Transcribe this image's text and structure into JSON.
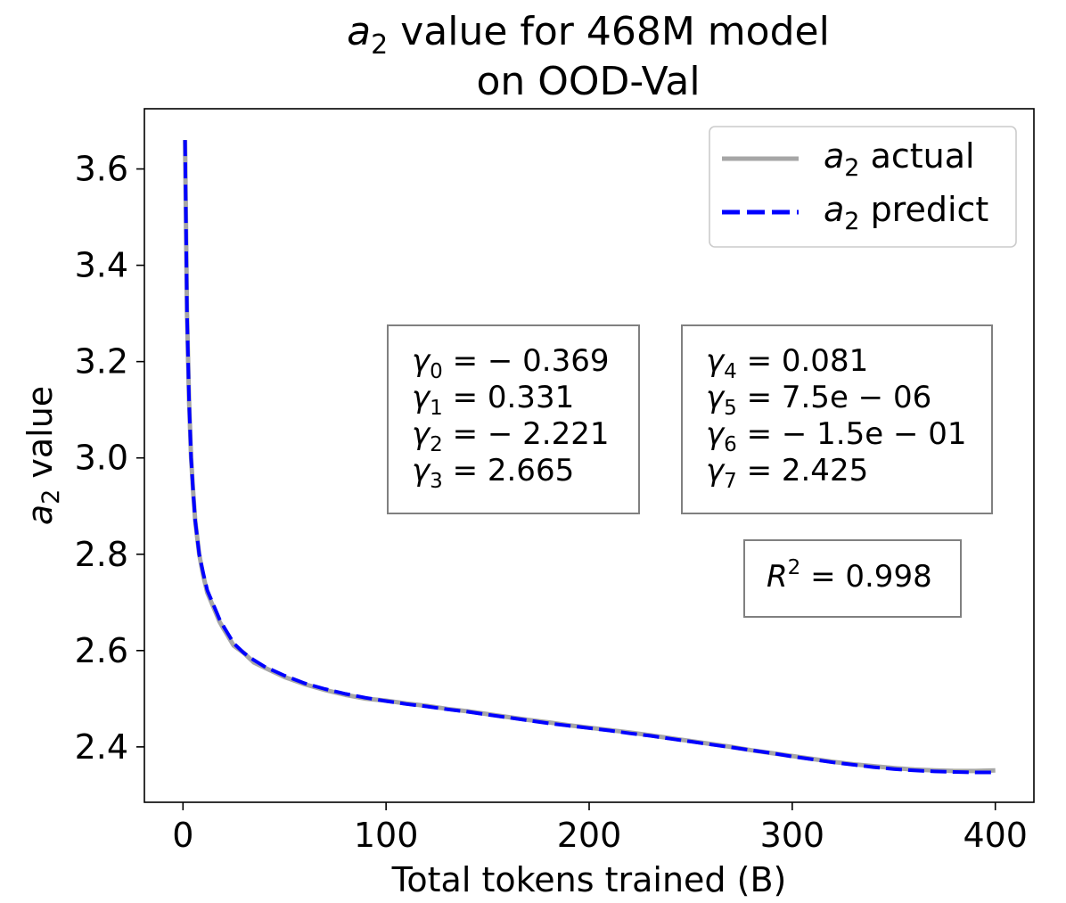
{
  "chart_data": {
    "type": "line",
    "title_line1_sym": "a",
    "title_line1_sub": "2",
    "title_line1_rest": " value for 468M model",
    "title_line2": "on OOD-Val",
    "xlabel": "Total tokens trained (B)",
    "ylabel_sym": "a",
    "ylabel_sub": "2",
    "ylabel_rest": " value",
    "xlim": [
      -19,
      419
    ],
    "ylim": [
      2.285,
      3.725
    ],
    "xticks": [
      0,
      100,
      200,
      300,
      400
    ],
    "xtick_labels": [
      "0",
      "100",
      "200",
      "300",
      "400"
    ],
    "yticks": [
      2.4,
      2.6,
      2.8,
      3.0,
      3.2,
      3.4,
      3.6
    ],
    "ytick_labels": [
      "2.4",
      "2.6",
      "2.8",
      "3.0",
      "3.2",
      "3.4",
      "3.6"
    ],
    "grid": false,
    "legend_position": "top-right",
    "series": [
      {
        "name": "a2 actual",
        "legend_sym": "a",
        "legend_sub": "2",
        "legend_rest": " actual",
        "color": "#a6a6a6",
        "style": "solid",
        "x": [
          1,
          2,
          3,
          4,
          5,
          6,
          8,
          10,
          12,
          15,
          18,
          20,
          25,
          30,
          35,
          40,
          50,
          60,
          70,
          80,
          90,
          100,
          110,
          120,
          130,
          140,
          150,
          160,
          170,
          180,
          190,
          200,
          210,
          220,
          230,
          240,
          250,
          260,
          270,
          280,
          290,
          300,
          310,
          320,
          330,
          340,
          350,
          360,
          370,
          380,
          390,
          400
        ],
        "y": [
          3.66,
          3.3,
          3.12,
          3.0,
          2.93,
          2.87,
          2.8,
          2.755,
          2.72,
          2.69,
          2.66,
          2.645,
          2.61,
          2.595,
          2.575,
          2.565,
          2.545,
          2.53,
          2.518,
          2.508,
          2.5,
          2.496,
          2.49,
          2.485,
          2.479,
          2.474,
          2.468,
          2.462,
          2.456,
          2.451,
          2.445,
          2.44,
          2.435,
          2.43,
          2.424,
          2.418,
          2.412,
          2.406,
          2.4,
          2.393,
          2.387,
          2.381,
          2.375,
          2.369,
          2.364,
          2.36,
          2.356,
          2.353,
          2.351,
          2.35,
          2.35,
          2.351
        ]
      },
      {
        "name": "a2 predict",
        "legend_sym": "a",
        "legend_sub": "2",
        "legend_rest": " predict",
        "color": "#0000ff",
        "style": "dashed",
        "x": [
          1,
          2,
          3,
          4,
          5,
          6,
          8,
          10,
          12,
          15,
          18,
          20,
          25,
          30,
          35,
          40,
          50,
          60,
          70,
          80,
          90,
          100,
          110,
          120,
          130,
          140,
          150,
          160,
          170,
          180,
          190,
          200,
          210,
          220,
          230,
          240,
          250,
          260,
          270,
          280,
          290,
          300,
          310,
          320,
          330,
          340,
          350,
          360,
          370,
          380,
          390,
          400
        ],
        "y": [
          3.66,
          3.3,
          3.12,
          3.0,
          2.93,
          2.87,
          2.8,
          2.76,
          2.725,
          2.695,
          2.665,
          2.65,
          2.615,
          2.595,
          2.58,
          2.567,
          2.548,
          2.532,
          2.52,
          2.51,
          2.502,
          2.495,
          2.489,
          2.484,
          2.478,
          2.473,
          2.467,
          2.461,
          2.455,
          2.449,
          2.444,
          2.439,
          2.434,
          2.428,
          2.423,
          2.417,
          2.411,
          2.405,
          2.399,
          2.393,
          2.387,
          2.38,
          2.374,
          2.368,
          2.363,
          2.358,
          2.354,
          2.351,
          2.349,
          2.348,
          2.347,
          2.347
        ]
      }
    ],
    "annotations": [
      {
        "lines": [
          {
            "sym": "γ",
            "sub": "0",
            "rest": " = − 0.369"
          },
          {
            "sym": "γ",
            "sub": "1",
            "rest": " = 0.331"
          },
          {
            "sym": "γ",
            "sub": "2",
            "rest": " = − 2.221"
          },
          {
            "sym": "γ",
            "sub": "3",
            "rest": " = 2.665"
          }
        ]
      },
      {
        "lines": [
          {
            "sym": "γ",
            "sub": "4",
            "rest": " = 0.081"
          },
          {
            "sym": "γ",
            "sub": "5",
            "rest": " = 7.5e − 06"
          },
          {
            "sym": "γ",
            "sub": "6",
            "rest": " = − 1.5e − 01"
          },
          {
            "sym": "γ",
            "sub": "7",
            "rest": " = 2.425"
          }
        ]
      }
    ],
    "r2": {
      "sym": "R",
      "sup": "2",
      "rest": " = 0.998"
    }
  }
}
